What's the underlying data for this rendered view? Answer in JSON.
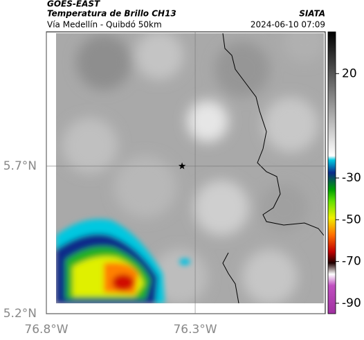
{
  "header": {
    "source": "GOES-EAST",
    "title": "Temperatura de Brillo CH13",
    "org": "SIATA",
    "subtitle": "Vía Medellín - Quibdó 50km",
    "timestamp": "2024-06-10 07:09"
  },
  "map": {
    "xlim": [
      -76.8,
      -75.863
    ],
    "ylim": [
      5.2,
      6.155
    ],
    "xticks": [
      {
        "value": -76.8,
        "label": "76.8°W"
      },
      {
        "value": -76.3,
        "label": "76.3°W"
      }
    ],
    "yticks": [
      {
        "value": 5.2,
        "label": "5.2°N"
      },
      {
        "value": 5.7,
        "label": "5.7°N"
      }
    ],
    "grid": true,
    "marker": {
      "lon": -76.344,
      "lat": 5.7
    }
  },
  "colorbar": {
    "clim": [
      -95,
      40
    ],
    "ticks": [
      20,
      -30,
      -50,
      -70,
      -90
    ]
  }
}
